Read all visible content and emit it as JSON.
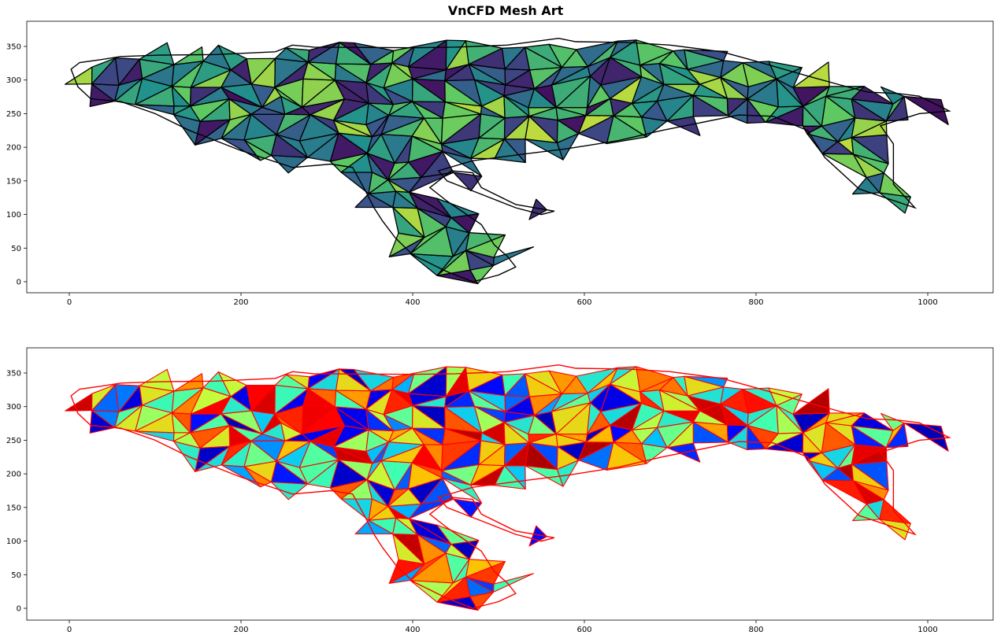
{
  "title": "VnCFD Mesh Art",
  "chart_data": [
    {
      "type": "mesh-contour",
      "panel": "top",
      "description_colormap": "viridis",
      "edge_color": "#000000",
      "xlim": [
        -50,
        1075
      ],
      "ylim": [
        -18,
        385
      ],
      "xticks": [
        0,
        200,
        400,
        600,
        800,
        1000
      ],
      "xtick_labels": [
        "0",
        "200",
        "400",
        "600",
        "800",
        "1000"
      ],
      "yticks": [
        0,
        50,
        100,
        150,
        200,
        250,
        300,
        350
      ],
      "ytick_labels": [
        "0",
        "50",
        "100",
        "150",
        "200",
        "250",
        "300",
        "350"
      ],
      "outline": [
        [
          2,
          316
        ],
        [
          12,
          326
        ],
        [
          35,
          330
        ],
        [
          60,
          335
        ],
        [
          105,
          337
        ],
        [
          170,
          338
        ],
        [
          240,
          342
        ],
        [
          260,
          352
        ],
        [
          285,
          349
        ],
        [
          400,
          348
        ],
        [
          450,
          349
        ],
        [
          510,
          352
        ],
        [
          570,
          362
        ],
        [
          590,
          357
        ],
        [
          650,
          356
        ],
        [
          700,
          352
        ],
        [
          760,
          342
        ],
        [
          800,
          328
        ],
        [
          860,
          306
        ],
        [
          900,
          292
        ],
        [
          930,
          282
        ],
        [
          965,
          280
        ],
        [
          990,
          276
        ],
        [
          1025,
          254
        ],
        [
          990,
          250
        ],
        [
          945,
          232
        ],
        [
          960,
          205
        ],
        [
          960,
          145
        ],
        [
          985,
          110
        ],
        [
          920,
          138
        ],
        [
          880,
          185
        ],
        [
          860,
          225
        ],
        [
          820,
          246
        ],
        [
          780,
          248
        ],
        [
          690,
          225
        ],
        [
          640,
          210
        ],
        [
          580,
          198
        ],
        [
          530,
          190
        ],
        [
          470,
          180
        ],
        [
          430,
          165
        ],
        [
          440,
          150
        ],
        [
          480,
          130
        ],
        [
          520,
          110
        ],
        [
          550,
          100
        ],
        [
          565,
          105
        ],
        [
          520,
          115
        ],
        [
          480,
          140
        ],
        [
          470,
          162
        ],
        [
          445,
          165
        ],
        [
          430,
          150
        ],
        [
          420,
          140
        ],
        [
          440,
          120
        ],
        [
          480,
          85
        ],
        [
          495,
          55
        ],
        [
          510,
          38
        ],
        [
          520,
          22
        ],
        [
          500,
          10
        ],
        [
          470,
          0
        ],
        [
          440,
          15
        ],
        [
          400,
          40
        ],
        [
          380,
          65
        ],
        [
          365,
          90
        ],
        [
          355,
          110
        ],
        [
          345,
          135
        ],
        [
          330,
          170
        ],
        [
          305,
          175
        ],
        [
          260,
          170
        ],
        [
          200,
          195
        ],
        [
          140,
          225
        ],
        [
          100,
          250
        ],
        [
          60,
          268
        ],
        [
          25,
          272
        ],
        [
          10,
          290
        ]
      ]
    },
    {
      "type": "mesh-cells",
      "panel": "bottom",
      "description_colormap": "jet",
      "edge_color": "#ff0000",
      "xlim": [
        -50,
        1075
      ],
      "ylim": [
        -18,
        385
      ],
      "xticks": [
        0,
        200,
        400,
        600,
        800,
        1000
      ],
      "xtick_labels": [
        "0",
        "200",
        "400",
        "600",
        "800",
        "1000"
      ],
      "yticks": [
        0,
        50,
        100,
        150,
        200,
        250,
        300,
        350
      ],
      "ytick_labels": [
        "0",
        "50",
        "100",
        "150",
        "200",
        "250",
        "300",
        "350"
      ]
    }
  ]
}
